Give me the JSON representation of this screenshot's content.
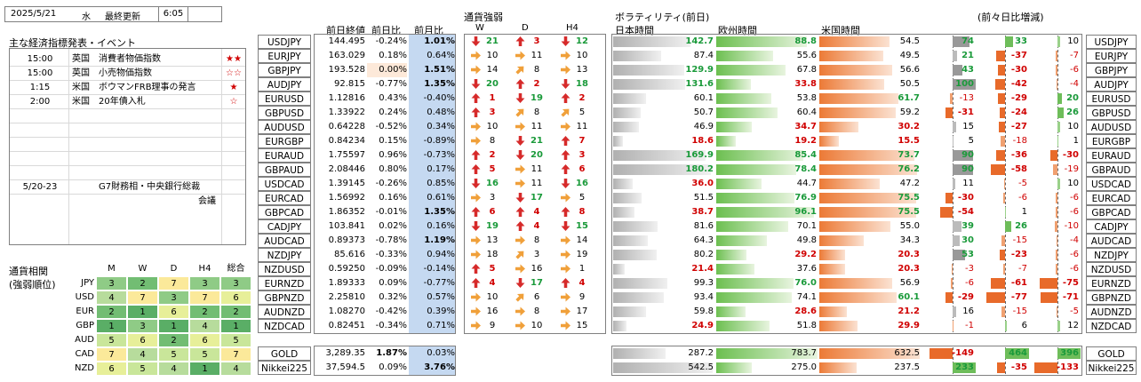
{
  "header": {
    "date": "2025/5/21",
    "weekday": "水",
    "updated_label": "最終更新",
    "time": "6:05"
  },
  "events": {
    "title": "主な経済指標発表・イベント",
    "rows": [
      {
        "time": "15:00",
        "country": "英国",
        "event": "消費者物価指数",
        "stars": "★★"
      },
      {
        "time": "15:00",
        "country": "英国",
        "event": "小売物価指数",
        "stars": "☆☆"
      },
      {
        "time": "1:15",
        "country": "米国",
        "event": "ボウマンFRB理事の発言",
        "stars": "★"
      },
      {
        "time": "2:00",
        "country": "米国",
        "event": "20年債入札",
        "stars": "☆"
      },
      {
        "time": "",
        "country": "",
        "event": "",
        "stars": ""
      },
      {
        "time": "",
        "country": "",
        "event": "",
        "stars": ""
      },
      {
        "time": "",
        "country": "",
        "event": "",
        "stars": ""
      },
      {
        "time": "",
        "country": "",
        "event": "",
        "stars": ""
      },
      {
        "time": "",
        "country": "",
        "event": "",
        "stars": ""
      },
      {
        "time": "5/20-23",
        "country": "",
        "event": "G7財務相・中央銀行総裁",
        "stars": ""
      },
      {
        "time": "",
        "country": "",
        "event": "会議",
        "stars": ""
      }
    ]
  },
  "relative": {
    "title1": "通貨相関",
    "title2": "(強弱順位)",
    "cols": [
      "M",
      "W",
      "D",
      "H4",
      "総合"
    ],
    "rows": [
      {
        "cur": "JPY",
        "vals": [
          3,
          2,
          7,
          3,
          3
        ]
      },
      {
        "cur": "USD",
        "vals": [
          4,
          7,
          3,
          7,
          6
        ]
      },
      {
        "cur": "EUR",
        "vals": [
          2,
          1,
          6,
          2,
          2
        ]
      },
      {
        "cur": "GBP",
        "vals": [
          1,
          3,
          1,
          4,
          1
        ]
      },
      {
        "cur": "AUD",
        "vals": [
          5,
          6,
          2,
          6,
          5
        ]
      },
      {
        "cur": "CAD",
        "vals": [
          7,
          4,
          5,
          5,
          7
        ]
      },
      {
        "cur": "NZD",
        "vals": [
          6,
          5,
          4,
          1,
          4
        ]
      }
    ]
  },
  "table_headers": {
    "prev_close": "前日終値",
    "prev_change": "前日比",
    "month_change": "前月比",
    "strength": "通貨強弱",
    "w": "W",
    "d": "D",
    "h4": "H4",
    "volatility": "ボラティリティ(前日)",
    "tokyo": "日本時間",
    "europe": "欧州時間",
    "us": "米国時間",
    "diff": "(前々日比増減)"
  },
  "pairs": [
    {
      "pair": "USDJPY",
      "close": "144.495",
      "chg": "-0.24%",
      "mchg": "1.01%",
      "w": [
        "down",
        21
      ],
      "d": [
        "up",
        3
      ],
      "h4": [
        "down",
        12
      ],
      "tok": "142.7",
      "eu": "88.8",
      "us": "54.5",
      "d1": "74",
      "d2": "33",
      "d3": "10"
    },
    {
      "pair": "EURJPY",
      "close": "163.029",
      "chg": "0.18%",
      "mchg": "0.64%",
      "w": [
        "right",
        10
      ],
      "d": [
        "right",
        11
      ],
      "h4": [
        "right",
        10
      ],
      "tok": "87.4",
      "eu": "55.6",
      "us": "49.5",
      "d1": "21",
      "d2": "-37",
      "d3": "-7"
    },
    {
      "pair": "GBPJPY",
      "close": "193.528",
      "chg": "0.00%",
      "mchg": "1.51%",
      "w": [
        "right",
        14
      ],
      "d": [
        "upright",
        8
      ],
      "h4": [
        "right",
        13
      ],
      "tok": "129.9",
      "eu": "67.8",
      "us": "56.6",
      "d1": "43",
      "d2": "-30",
      "d3": "-6"
    },
    {
      "pair": "AUDJPY",
      "close": "92.815",
      "chg": "-0.77%",
      "mchg": "1.35%",
      "w": [
        "down",
        20
      ],
      "d": [
        "up",
        2
      ],
      "h4": [
        "down",
        18
      ],
      "tok": "131.6",
      "eu": "33.8",
      "us": "50.5",
      "d1": "100",
      "d2": "-42",
      "d3": "-4"
    },
    {
      "pair": "EURUSD",
      "close": "1.12816",
      "chg": "0.43%",
      "mchg": "-0.40%",
      "w": [
        "up",
        1
      ],
      "d": [
        "down",
        19
      ],
      "h4": [
        "up",
        2
      ],
      "tok": "60.1",
      "eu": "53.8",
      "us": "61.7",
      "d1": "-13",
      "d2": "-29",
      "d3": "20"
    },
    {
      "pair": "GBPUSD",
      "close": "1.33922",
      "chg": "0.24%",
      "mchg": "0.48%",
      "w": [
        "up",
        3
      ],
      "d": [
        "upright",
        8
      ],
      "h4": [
        "upright",
        5
      ],
      "tok": "50.7",
      "eu": "60.4",
      "us": "59.2",
      "d1": "-31",
      "d2": "-24",
      "d3": "26"
    },
    {
      "pair": "AUDUSD",
      "close": "0.64228",
      "chg": "-0.52%",
      "mchg": "0.34%",
      "w": [
        "right",
        10
      ],
      "d": [
        "right",
        11
      ],
      "h4": [
        "right",
        11
      ],
      "tok": "46.9",
      "eu": "34.7",
      "us": "30.2",
      "d1": "15",
      "d2": "-27",
      "d3": "10"
    },
    {
      "pair": "EURGBP",
      "close": "0.84234",
      "chg": "0.15%",
      "mchg": "-0.89%",
      "w": [
        "right",
        8
      ],
      "d": [
        "down",
        21
      ],
      "h4": [
        "up",
        7
      ],
      "tok": "18.6",
      "eu": "19.2",
      "us": "15.5",
      "d1": "5",
      "d2": "-18",
      "d3": "1"
    },
    {
      "pair": "EURAUD",
      "close": "1.75597",
      "chg": "0.96%",
      "mchg": "-0.73%",
      "w": [
        "up",
        2
      ],
      "d": [
        "down",
        20
      ],
      "h4": [
        "up",
        3
      ],
      "tok": "169.9",
      "eu": "85.4",
      "us": "73.7",
      "d1": "90",
      "d2": "-36",
      "d3": "-30"
    },
    {
      "pair": "GBPAUD",
      "close": "2.08446",
      "chg": "0.80%",
      "mchg": "0.17%",
      "w": [
        "up",
        5
      ],
      "d": [
        "right",
        11
      ],
      "h4": [
        "up",
        6
      ],
      "tok": "180.2",
      "eu": "78.4",
      "us": "76.2",
      "d1": "90",
      "d2": "-58",
      "d3": "-19"
    },
    {
      "pair": "USDCAD",
      "close": "1.39145",
      "chg": "-0.26%",
      "mchg": "0.85%",
      "w": [
        "down",
        16
      ],
      "d": [
        "right",
        11
      ],
      "h4": [
        "down",
        16
      ],
      "tok": "36.0",
      "eu": "44.7",
      "us": "47.2",
      "d1": "11",
      "d2": "-5",
      "d3": "10"
    },
    {
      "pair": "EURCAD",
      "close": "1.56992",
      "chg": "0.16%",
      "mchg": "0.61%",
      "w": [
        "right",
        3
      ],
      "d": [
        "down",
        17
      ],
      "h4": [
        "right",
        5
      ],
      "tok": "51.5",
      "eu": "76.9",
      "us": "75.5",
      "d1": "-30",
      "d2": "-6",
      "d3": "-6"
    },
    {
      "pair": "GBPCAD",
      "close": "1.86352",
      "chg": "-0.01%",
      "mchg": "1.35%",
      "w": [
        "up",
        6
      ],
      "d": [
        "up",
        4
      ],
      "h4": [
        "up",
        8
      ],
      "tok": "38.7",
      "eu": "96.1",
      "us": "75.5",
      "d1": "-54",
      "d2": "1",
      "d3": "-6"
    },
    {
      "pair": "CADJPY",
      "close": "103.841",
      "chg": "0.02%",
      "mchg": "0.16%",
      "w": [
        "down",
        19
      ],
      "d": [
        "up",
        4
      ],
      "h4": [
        "down",
        15
      ],
      "tok": "81.6",
      "eu": "70.1",
      "us": "55.0",
      "d1": "39",
      "d2": "26",
      "d3": "-10"
    },
    {
      "pair": "AUDCAD",
      "close": "0.89373",
      "chg": "-0.78%",
      "mchg": "1.19%",
      "w": [
        "right",
        13
      ],
      "d": [
        "right",
        8
      ],
      "h4": [
        "right",
        14
      ],
      "tok": "64.3",
      "eu": "49.8",
      "us": "34.3",
      "d1": "30",
      "d2": "-15",
      "d3": "-4"
    },
    {
      "pair": "NZDJPY",
      "close": "85.616",
      "chg": "-0.33%",
      "mchg": "0.94%",
      "w": [
        "right",
        18
      ],
      "d": [
        "upright",
        3
      ],
      "h4": [
        "right",
        19
      ],
      "tok": "80.2",
      "eu": "29.2",
      "us": "20.3",
      "d1": "53",
      "d2": "-23",
      "d3": "-6"
    },
    {
      "pair": "NZDUSD",
      "close": "0.59250",
      "chg": "-0.09%",
      "mchg": "-0.14%",
      "w": [
        "up",
        5
      ],
      "d": [
        "right",
        16
      ],
      "h4": [
        "right",
        1
      ],
      "tok": "21.4",
      "eu": "37.6",
      "us": "20.3",
      "d1": "-3",
      "d2": "-7",
      "d3": "-6"
    },
    {
      "pair": "EURNZD",
      "close": "1.89333",
      "chg": "0.09%",
      "mchg": "-0.77%",
      "w": [
        "up",
        4
      ],
      "d": [
        "down",
        17
      ],
      "h4": [
        "up",
        4
      ],
      "tok": "99.3",
      "eu": "76.0",
      "us": "56.9",
      "d1": "-6",
      "d2": "-61",
      "d3": "-75"
    },
    {
      "pair": "GBPNZD",
      "close": "2.25810",
      "chg": "0.32%",
      "mchg": "0.57%",
      "w": [
        "right",
        10
      ],
      "d": [
        "upright",
        6
      ],
      "h4": [
        "right",
        9
      ],
      "tok": "93.4",
      "eu": "74.1",
      "us": "60.1",
      "d1": "-29",
      "d2": "-77",
      "d3": "-71"
    },
    {
      "pair": "AUDNZD",
      "close": "1.08270",
      "chg": "-0.42%",
      "mchg": "0.39%",
      "w": [
        "right",
        16
      ],
      "d": [
        "right",
        8
      ],
      "h4": [
        "right",
        17
      ],
      "tok": "59.8",
      "eu": "28.6",
      "us": "21.2",
      "d1": "16",
      "d2": "-15",
      "d3": "-5"
    },
    {
      "pair": "NZDCAD",
      "close": "0.82451",
      "chg": "-0.34%",
      "mchg": "0.71%",
      "w": [
        "right",
        9
      ],
      "d": [
        "right",
        10
      ],
      "h4": [
        "right",
        15
      ],
      "tok": "24.9",
      "eu": "51.8",
      "us": "29.9",
      "d1": "-1",
      "d2": "6",
      "d3": "12"
    }
  ],
  "extras": [
    {
      "pair": "GOLD",
      "close": "3,289.35",
      "chg": "1.87%",
      "mchg": "0.03%",
      "tok": "287.2",
      "eu": "783.7",
      "us": "632.5",
      "d1": "-149",
      "d2": "464",
      "d3": "396"
    },
    {
      "pair": "Nikkei225",
      "close": "37,594.5",
      "chg": "0.09%",
      "mchg": "3.76%",
      "tok": "542.5",
      "eu": "275.0",
      "us": "237.5",
      "d1": "233",
      "d2": "-35",
      "d3": "-133"
    }
  ],
  "colors": {
    "green": "#1a9a3a",
    "red": "#d00000",
    "orange": "#e86a2a",
    "gray": "#a0a0a0",
    "blue_bg": "#c5d9f1"
  },
  "icons": {
    "up": "red-up-arrow-icon",
    "down": "red-down-arrow-icon",
    "right": "orange-right-arrow-icon",
    "upright": "orange-upright-arrow-icon"
  }
}
